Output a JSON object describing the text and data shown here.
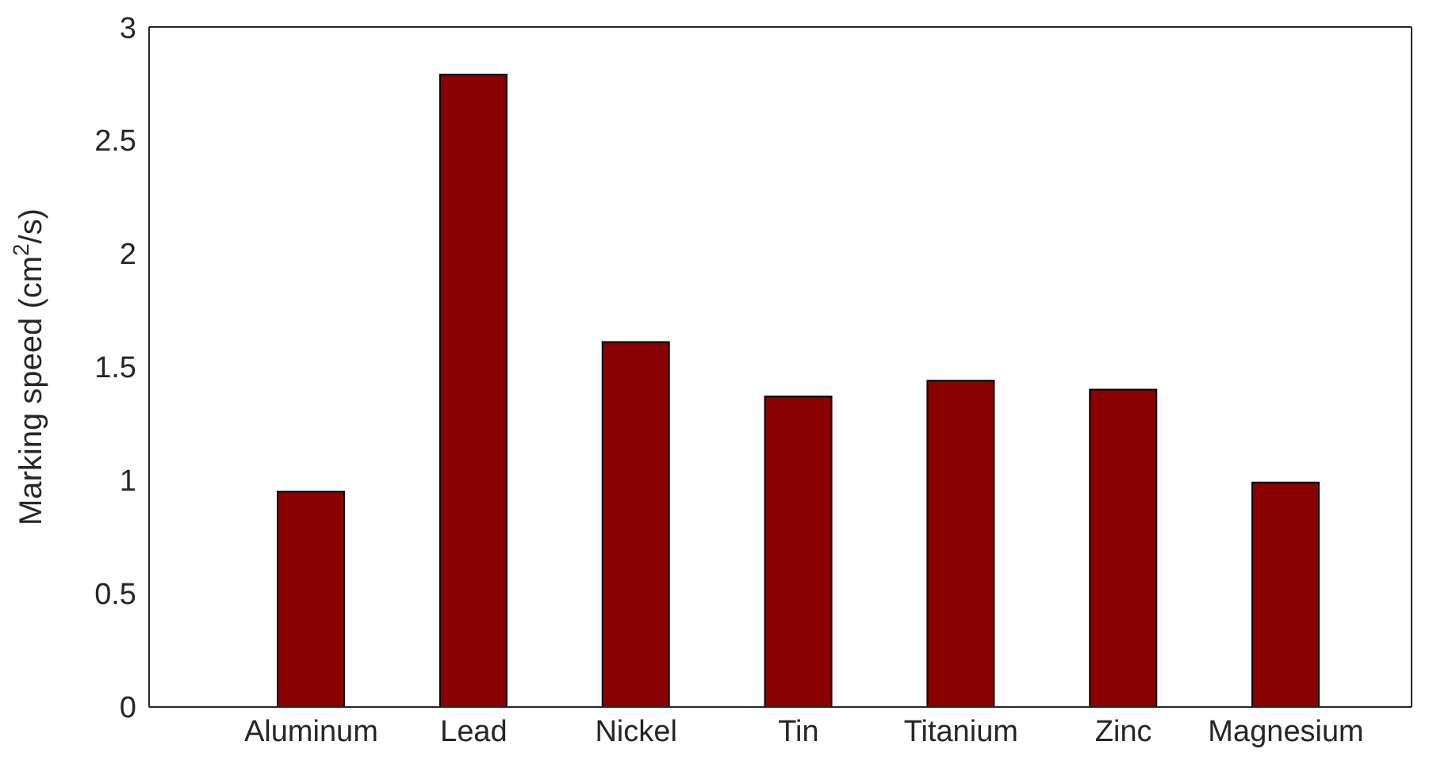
{
  "chart_data": {
    "type": "bar",
    "ylabel": "Marking speed (cm$^{2}$/s)",
    "categories": [
      "Aluminum",
      "Lead",
      "Nickel",
      "Tin",
      "Titanium",
      "Zinc",
      "Magnesium"
    ],
    "values": [
      0.95,
      2.79,
      1.61,
      1.37,
      1.44,
      1.4,
      0.99
    ],
    "color": "#8b0000",
    "ylim": [
      0,
      3
    ],
    "yticks": [
      0,
      0.5,
      1,
      1.5,
      2,
      2.5,
      3
    ],
    "grid": false,
    "legend": false
  }
}
